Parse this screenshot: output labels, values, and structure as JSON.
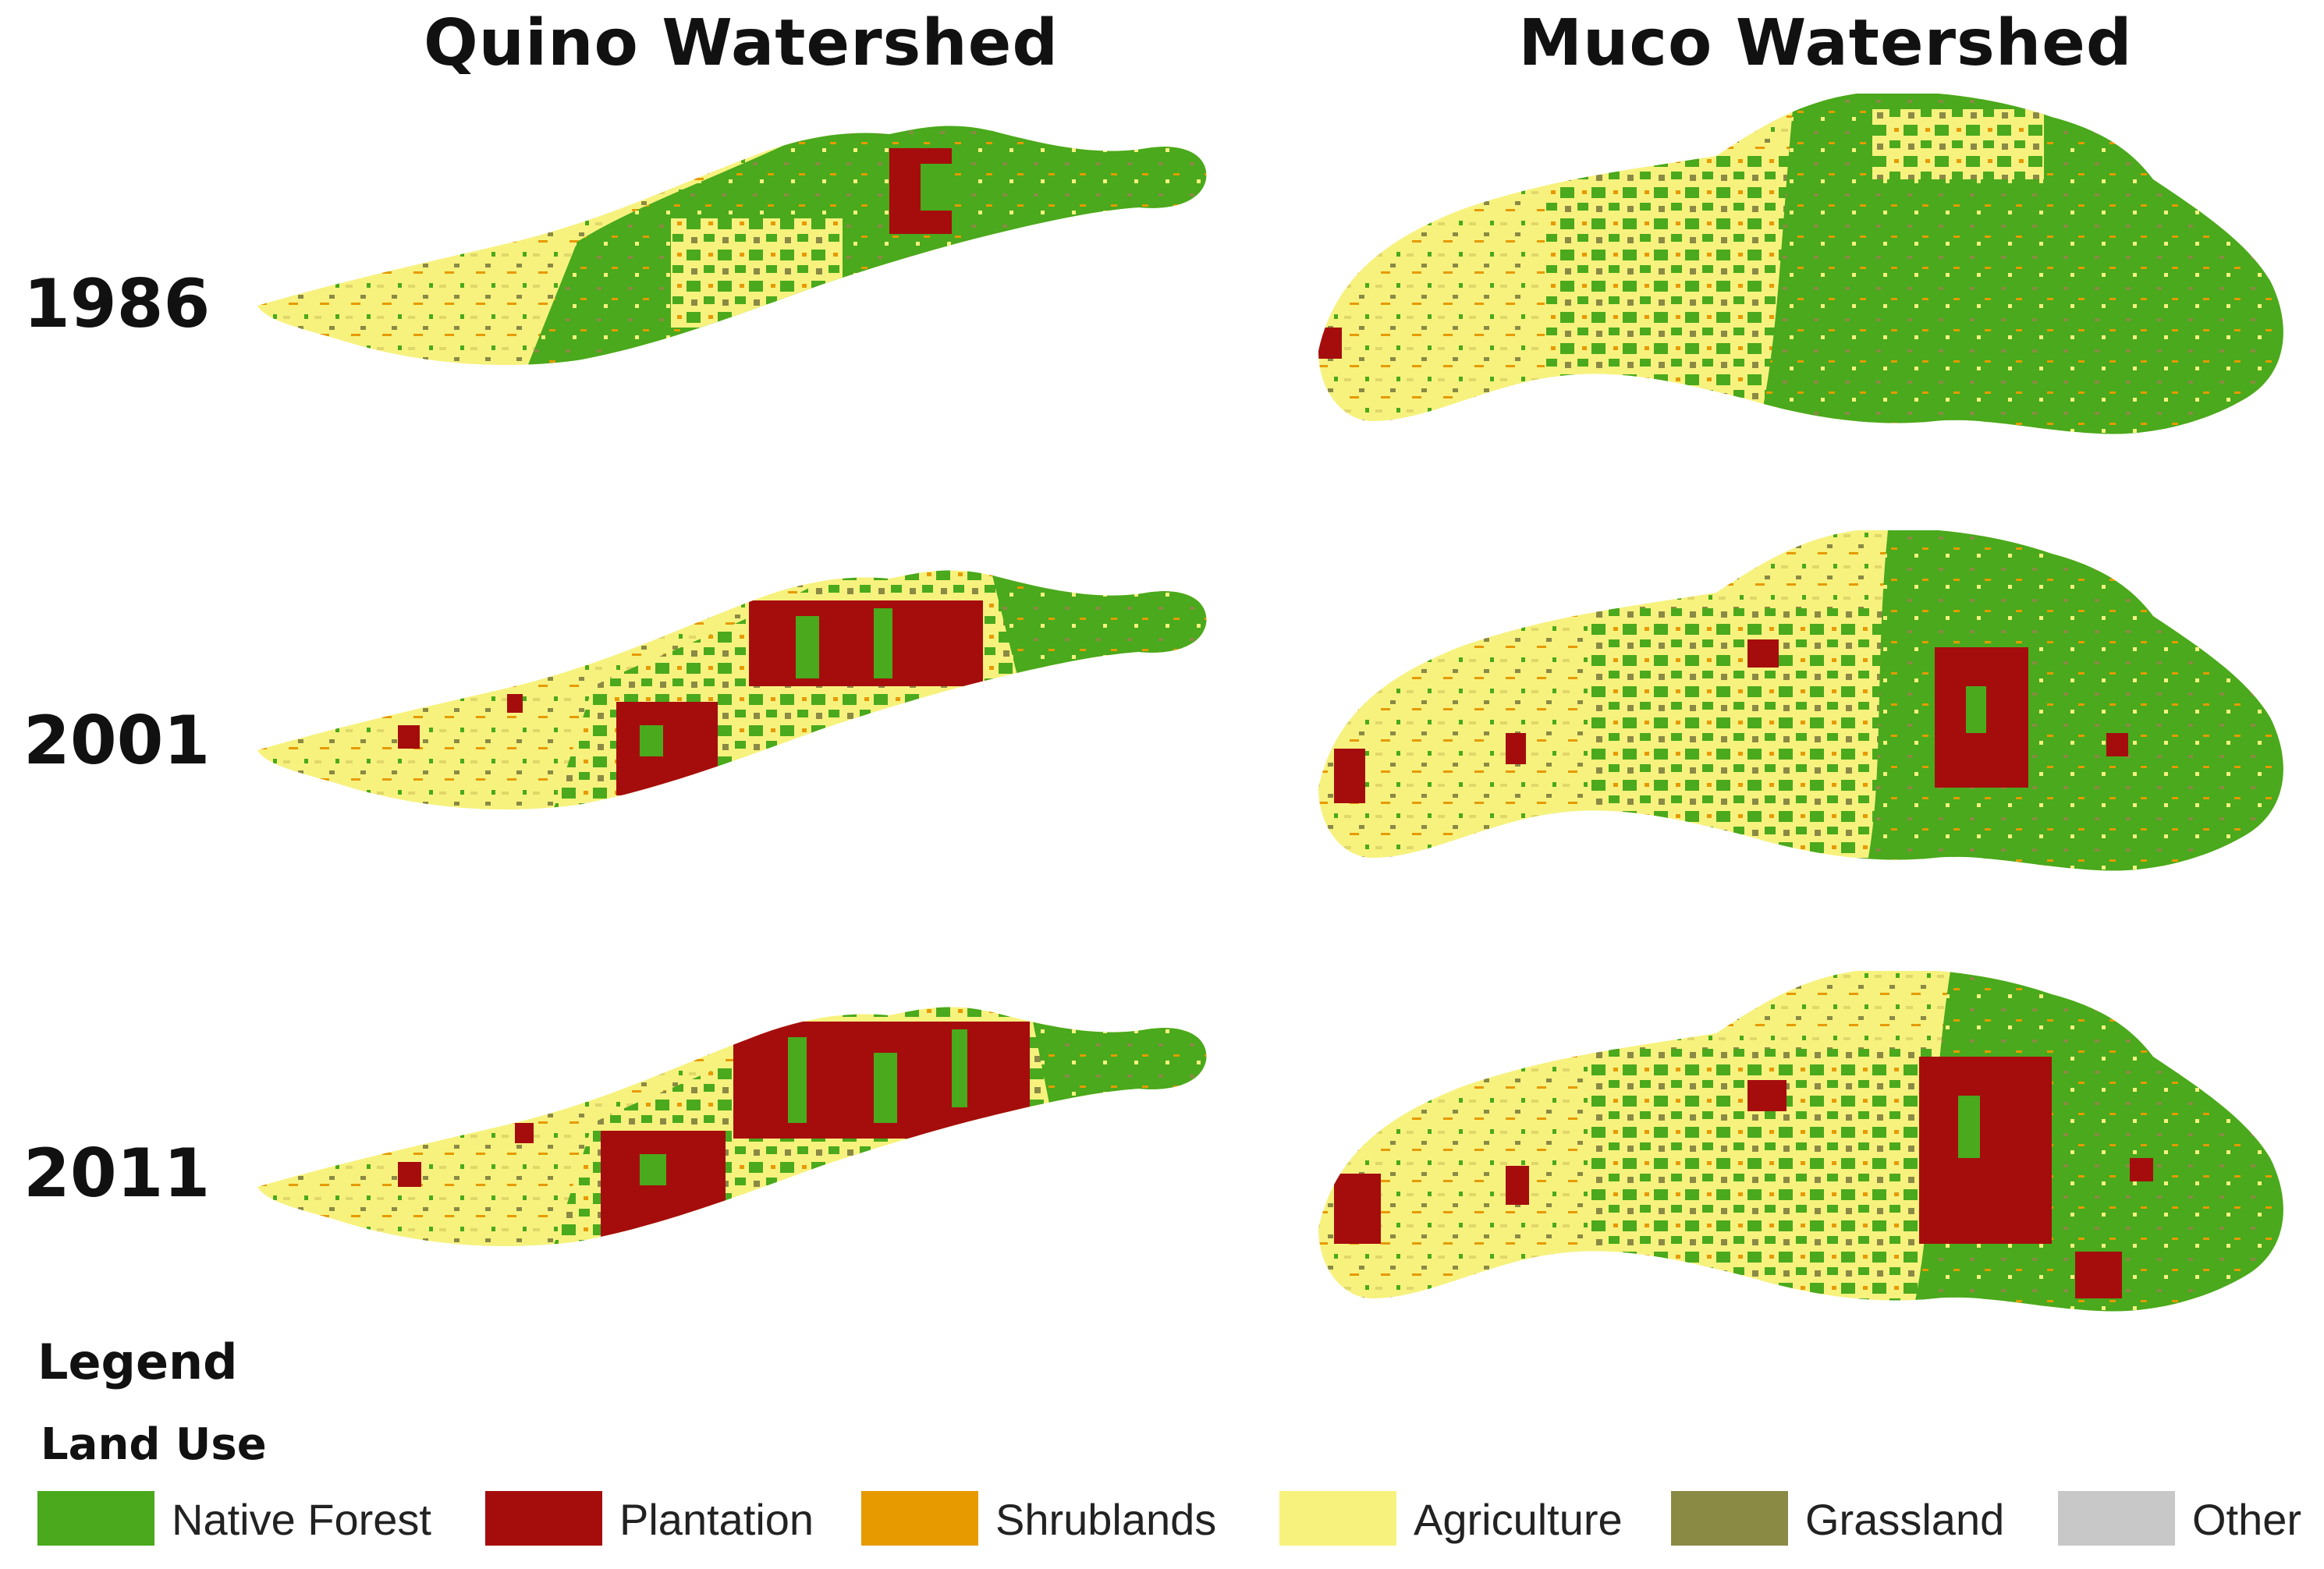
{
  "columns": [
    "Quino Watershed",
    "Muco Watershed"
  ],
  "years": [
    "1986",
    "2001",
    "2011"
  ],
  "legend": {
    "title": "Legend",
    "subtitle": "Land Use",
    "items": [
      {
        "label": "Native Forest",
        "color": "#4aa91c"
      },
      {
        "label": "Plantation",
        "color": "#a50d0d"
      },
      {
        "label": "Shrublands",
        "color": "#e69a00"
      },
      {
        "label": "Agriculture",
        "color": "#f7f27e"
      },
      {
        "label": "Grassland",
        "color": "#8a8a45"
      },
      {
        "label": "Other",
        "color": "#c8c8c8"
      }
    ]
  }
}
